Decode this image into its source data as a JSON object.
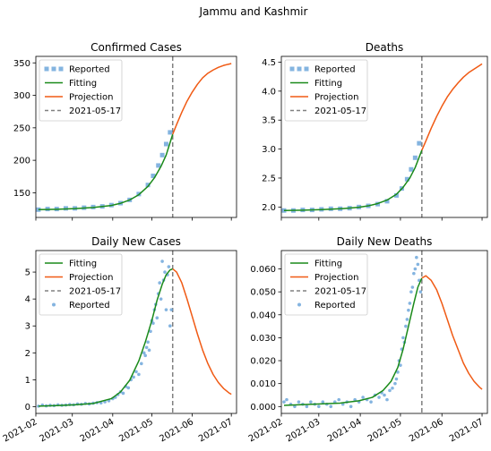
{
  "figure": {
    "suptitle": "Jammu and Kashmir"
  },
  "colors": {
    "reported": "#5b9bd5",
    "fitting": "#1a8a1a",
    "projection": "#f05a14",
    "cutoff": "#808080"
  },
  "chart_data": [
    {
      "type": "line",
      "title": "Confirmed Cases",
      "xlabel": "",
      "ylabel": "",
      "xlim": [
        "2021-02-01",
        "2021-07-05"
      ],
      "ylim": [
        112,
        360
      ],
      "yticks": [
        150,
        200,
        250,
        300,
        350
      ],
      "ytick_labels": [
        "150",
        "200",
        "250",
        "300",
        "350"
      ],
      "xticks": [
        "2021-02-01",
        "2021-03-01",
        "2021-04-01",
        "2021-05-01",
        "2021-06-01",
        "2021-07-01"
      ],
      "xtick_labels": [
        "",
        "",
        "",
        "",
        "",
        ""
      ],
      "cutoff": "2021-05-17",
      "legend": {
        "placement": "top-left",
        "entries": [
          "Reported",
          "Fitting",
          "Projection",
          "2021-05-17"
        ]
      },
      "series": [
        {
          "name": "Reported",
          "style": "marker",
          "x": [
            "2021-02-03",
            "2021-02-10",
            "2021-02-17",
            "2021-02-24",
            "2021-03-03",
            "2021-03-10",
            "2021-03-17",
            "2021-03-24",
            "2021-03-31",
            "2021-04-07",
            "2021-04-14",
            "2021-04-21",
            "2021-04-28",
            "2021-05-02",
            "2021-05-06",
            "2021-05-09",
            "2021-05-12",
            "2021-05-15"
          ],
          "y": [
            124,
            125,
            125,
            126,
            126,
            127,
            128,
            129,
            131,
            134,
            139,
            148,
            162,
            176,
            192,
            208,
            225,
            243
          ]
        },
        {
          "name": "Fitting",
          "style": "line",
          "x": [
            "2021-02-03",
            "2021-02-17",
            "2021-03-03",
            "2021-03-17",
            "2021-03-31",
            "2021-04-07",
            "2021-04-14",
            "2021-04-21",
            "2021-04-28",
            "2021-05-03",
            "2021-05-08",
            "2021-05-12",
            "2021-05-17"
          ],
          "y": [
            124,
            124.6,
            125.6,
            127.3,
            130.5,
            133.8,
            138.9,
            147,
            159.8,
            173,
            190.5,
            208,
            240
          ]
        },
        {
          "name": "Projection",
          "style": "line",
          "x": [
            "2021-05-17",
            "2021-05-20",
            "2021-05-24",
            "2021-05-28",
            "2021-06-01",
            "2021-06-05",
            "2021-06-09",
            "2021-06-13",
            "2021-06-17",
            "2021-06-21",
            "2021-06-25",
            "2021-06-29",
            "2021-07-01"
          ],
          "y": [
            240,
            255,
            274,
            291,
            305,
            317,
            327,
            334,
            339,
            343,
            346,
            348,
            349
          ]
        }
      ]
    },
    {
      "type": "line",
      "title": "Deaths",
      "xlabel": "",
      "ylabel": "",
      "xlim": [
        "2021-02-01",
        "2021-07-05"
      ],
      "ylim": [
        1.82,
        4.6
      ],
      "yticks": [
        2.0,
        2.5,
        3.0,
        3.5,
        4.0,
        4.5
      ],
      "ytick_labels": [
        "2.0",
        "2.5",
        "3.0",
        "3.5",
        "4.0",
        "4.5"
      ],
      "xticks": [
        "2021-02-01",
        "2021-03-01",
        "2021-04-01",
        "2021-05-01",
        "2021-06-01",
        "2021-07-01"
      ],
      "xtick_labels": [
        "",
        "",
        "",
        "",
        "",
        ""
      ],
      "cutoff": "2021-05-17",
      "legend": {
        "placement": "top-left",
        "entries": [
          "Reported",
          "Fitting",
          "Projection",
          "2021-05-17"
        ]
      },
      "series": [
        {
          "name": "Reported",
          "style": "marker",
          "x": [
            "2021-02-03",
            "2021-02-10",
            "2021-02-17",
            "2021-02-24",
            "2021-03-03",
            "2021-03-10",
            "2021-03-17",
            "2021-03-24",
            "2021-03-31",
            "2021-04-07",
            "2021-04-14",
            "2021-04-21",
            "2021-04-28",
            "2021-05-02",
            "2021-05-06",
            "2021-05-09",
            "2021-05-12",
            "2021-05-15"
          ],
          "y": [
            1.94,
            1.94,
            1.95,
            1.95,
            1.96,
            1.97,
            1.97,
            1.98,
            2.0,
            2.02,
            2.05,
            2.1,
            2.2,
            2.32,
            2.48,
            2.65,
            2.85,
            3.1
          ]
        },
        {
          "name": "Fitting",
          "style": "line",
          "x": [
            "2021-02-03",
            "2021-02-17",
            "2021-03-03",
            "2021-03-17",
            "2021-03-31",
            "2021-04-07",
            "2021-04-14",
            "2021-04-21",
            "2021-04-28",
            "2021-05-03",
            "2021-05-08",
            "2021-05-12",
            "2021-05-17"
          ],
          "y": [
            1.94,
            1.945,
            1.955,
            1.97,
            1.995,
            2.02,
            2.06,
            2.12,
            2.22,
            2.34,
            2.5,
            2.68,
            2.98
          ]
        },
        {
          "name": "Projection",
          "style": "line",
          "x": [
            "2021-05-17",
            "2021-05-20",
            "2021-05-24",
            "2021-05-28",
            "2021-06-01",
            "2021-06-05",
            "2021-06-09",
            "2021-06-13",
            "2021-06-17",
            "2021-06-21",
            "2021-06-25",
            "2021-06-29",
            "2021-07-01"
          ],
          "y": [
            2.98,
            3.14,
            3.36,
            3.56,
            3.74,
            3.9,
            4.03,
            4.14,
            4.24,
            4.32,
            4.38,
            4.44,
            4.47
          ]
        }
      ]
    },
    {
      "type": "line",
      "title": "Daily New Cases",
      "xlabel": "",
      "ylabel": "",
      "xlim": [
        "2021-02-01",
        "2021-07-05"
      ],
      "ylim": [
        -0.25,
        5.8
      ],
      "yticks": [
        0,
        1,
        2,
        3,
        4,
        5
      ],
      "ytick_labels": [
        "0",
        "1",
        "2",
        "3",
        "4",
        "5"
      ],
      "xticks": [
        "2021-02-01",
        "2021-03-01",
        "2021-04-01",
        "2021-05-01",
        "2021-06-01",
        "2021-07-01"
      ],
      "xtick_labels": [
        "2021-02",
        "2021-03",
        "2021-04",
        "2021-05",
        "2021-06",
        "2021-07"
      ],
      "cutoff": "2021-05-17",
      "legend": {
        "placement": "top-left",
        "entries": [
          "Fitting",
          "Projection",
          "2021-05-17",
          "Reported"
        ]
      },
      "series": [
        {
          "name": "Reported",
          "style": "dots",
          "x": [
            "2021-02-03",
            "2021-02-06",
            "2021-02-09",
            "2021-02-12",
            "2021-02-15",
            "2021-02-18",
            "2021-02-21",
            "2021-02-24",
            "2021-02-27",
            "2021-03-02",
            "2021-03-05",
            "2021-03-08",
            "2021-03-11",
            "2021-03-14",
            "2021-03-17",
            "2021-03-20",
            "2021-03-23",
            "2021-03-26",
            "2021-03-29",
            "2021-04-01",
            "2021-04-03",
            "2021-04-05",
            "2021-04-07",
            "2021-04-09",
            "2021-04-11",
            "2021-04-13",
            "2021-04-15",
            "2021-04-17",
            "2021-04-19",
            "2021-04-21",
            "2021-04-23",
            "2021-04-25",
            "2021-04-26",
            "2021-04-27",
            "2021-04-28",
            "2021-04-29",
            "2021-04-30",
            "2021-05-01",
            "2021-05-02",
            "2021-05-03",
            "2021-05-04",
            "2021-05-05",
            "2021-05-06",
            "2021-05-07",
            "2021-05-08",
            "2021-05-09",
            "2021-05-10",
            "2021-05-11",
            "2021-05-12",
            "2021-05-13",
            "2021-05-14",
            "2021-05-15",
            "2021-05-16"
          ],
          "y": [
            0.02,
            0.06,
            0.03,
            0.05,
            0.04,
            0.07,
            0.05,
            0.06,
            0.08,
            0.07,
            0.1,
            0.09,
            0.12,
            0.1,
            0.13,
            0.15,
            0.14,
            0.18,
            0.22,
            0.3,
            0.35,
            0.45,
            0.55,
            0.5,
            0.75,
            0.7,
            1.0,
            1.1,
            1.3,
            1.2,
            1.6,
            2.0,
            1.9,
            2.2,
            2.4,
            2.1,
            2.8,
            3.2,
            3.1,
            3.6,
            3.8,
            3.3,
            4.2,
            4.6,
            4.0,
            5.4,
            4.7,
            5.0,
            3.6,
            4.9,
            5.2,
            3.0,
            3.6
          ]
        },
        {
          "name": "Fitting",
          "style": "line",
          "x": [
            "2021-02-03",
            "2021-02-17",
            "2021-03-03",
            "2021-03-17",
            "2021-03-31",
            "2021-04-07",
            "2021-04-14",
            "2021-04-21",
            "2021-04-26",
            "2021-05-01",
            "2021-05-05",
            "2021-05-09",
            "2021-05-12",
            "2021-05-15",
            "2021-05-17"
          ],
          "y": [
            0.02,
            0.04,
            0.07,
            0.12,
            0.3,
            0.55,
            0.98,
            1.7,
            2.4,
            3.2,
            3.95,
            4.55,
            4.9,
            5.08,
            5.12
          ]
        },
        {
          "name": "Projection",
          "style": "line",
          "x": [
            "2021-05-17",
            "2021-05-20",
            "2021-05-24",
            "2021-05-28",
            "2021-06-01",
            "2021-06-05",
            "2021-06-09",
            "2021-06-13",
            "2021-06-17",
            "2021-06-21",
            "2021-06-25",
            "2021-06-29",
            "2021-07-01"
          ],
          "y": [
            5.12,
            5.0,
            4.6,
            4.0,
            3.35,
            2.7,
            2.1,
            1.6,
            1.2,
            0.9,
            0.68,
            0.52,
            0.46
          ]
        }
      ]
    },
    {
      "type": "line",
      "title": "Daily New Deaths",
      "xlabel": "",
      "ylabel": "",
      "xlim": [
        "2021-02-01",
        "2021-07-05"
      ],
      "ylim": [
        -0.003,
        0.068
      ],
      "yticks": [
        0,
        0.01,
        0.02,
        0.03,
        0.04,
        0.05,
        0.06
      ],
      "ytick_labels": [
        "0.000",
        "0.010",
        "0.020",
        "0.030",
        "0.040",
        "0.050",
        "0.060"
      ],
      "xticks": [
        "2021-02-01",
        "2021-03-01",
        "2021-04-01",
        "2021-05-01",
        "2021-06-01",
        "2021-07-01"
      ],
      "xtick_labels": [
        "2021-02",
        "2021-03",
        "2021-04",
        "2021-05",
        "2021-06",
        "2021-07"
      ],
      "cutoff": "2021-05-17",
      "legend": {
        "placement": "top-left",
        "entries": [
          "Fitting",
          "Projection",
          "2021-05-17",
          "Reported"
        ]
      },
      "series": [
        {
          "name": "Reported",
          "style": "dots",
          "x": [
            "2021-02-03",
            "2021-02-05",
            "2021-02-08",
            "2021-02-11",
            "2021-02-14",
            "2021-02-17",
            "2021-02-20",
            "2021-02-23",
            "2021-02-26",
            "2021-03-01",
            "2021-03-04",
            "2021-03-07",
            "2021-03-10",
            "2021-03-13",
            "2021-03-16",
            "2021-03-19",
            "2021-03-22",
            "2021-03-25",
            "2021-03-28",
            "2021-03-31",
            "2021-04-03",
            "2021-04-06",
            "2021-04-09",
            "2021-04-12",
            "2021-04-15",
            "2021-04-17",
            "2021-04-19",
            "2021-04-21",
            "2021-04-23",
            "2021-04-25",
            "2021-04-27",
            "2021-04-28",
            "2021-04-29",
            "2021-04-30",
            "2021-05-01",
            "2021-05-02",
            "2021-05-03",
            "2021-05-04",
            "2021-05-05",
            "2021-05-06",
            "2021-05-07",
            "2021-05-08",
            "2021-05-09",
            "2021-05-10",
            "2021-05-11",
            "2021-05-12",
            "2021-05-13",
            "2021-05-14",
            "2021-05-15",
            "2021-05-16"
          ],
          "y": [
            0.002,
            0.003,
            0.001,
            0.0,
            0.002,
            0.001,
            0.0,
            0.002,
            0.001,
            0.0,
            0.002,
            0.001,
            0.0,
            0.002,
            0.003,
            0.001,
            0.002,
            0.0,
            0.003,
            0.002,
            0.004,
            0.003,
            0.002,
            0.005,
            0.004,
            0.006,
            0.005,
            0.003,
            0.007,
            0.008,
            0.01,
            0.012,
            0.015,
            0.02,
            0.018,
            0.025,
            0.03,
            0.028,
            0.035,
            0.038,
            0.042,
            0.045,
            0.05,
            0.052,
            0.058,
            0.06,
            0.065,
            0.062,
            0.055,
            0.05
          ]
        },
        {
          "name": "Fitting",
          "style": "line",
          "x": [
            "2021-02-03",
            "2021-02-24",
            "2021-03-17",
            "2021-03-31",
            "2021-04-10",
            "2021-04-18",
            "2021-04-24",
            "2021-04-29",
            "2021-05-03",
            "2021-05-07",
            "2021-05-11",
            "2021-05-14",
            "2021-05-17"
          ],
          "y": [
            0.0005,
            0.001,
            0.0015,
            0.0025,
            0.004,
            0.007,
            0.011,
            0.017,
            0.025,
            0.035,
            0.045,
            0.052,
            0.056
          ]
        },
        {
          "name": "Projection",
          "style": "line",
          "x": [
            "2021-05-17",
            "2021-05-20",
            "2021-05-24",
            "2021-05-28",
            "2021-06-01",
            "2021-06-05",
            "2021-06-09",
            "2021-06-13",
            "2021-06-17",
            "2021-06-21",
            "2021-06-25",
            "2021-06-29",
            "2021-07-01"
          ],
          "y": [
            0.056,
            0.057,
            0.055,
            0.051,
            0.045,
            0.038,
            0.031,
            0.025,
            0.019,
            0.0145,
            0.011,
            0.0085,
            0.0075
          ]
        }
      ]
    }
  ]
}
